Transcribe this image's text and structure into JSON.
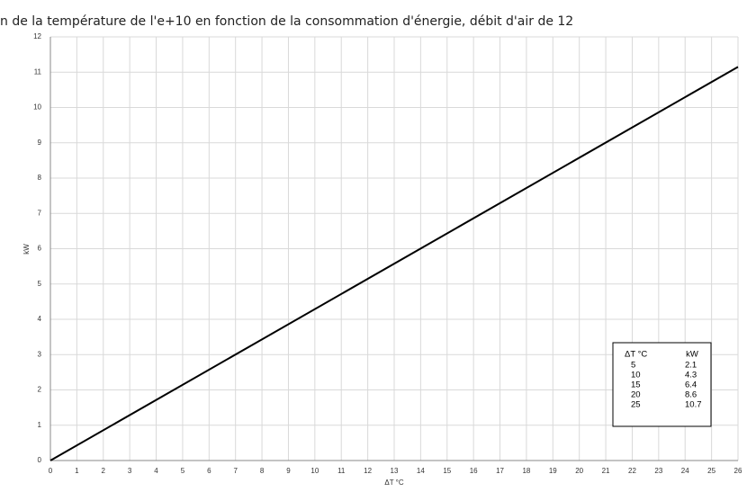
{
  "chart_data": {
    "type": "line",
    "title": "n de la température de l'e+10 en fonction de la consommation d'énergie, débit d'air de 12",
    "x_label": "ΔT °C",
    "y_label": "kW",
    "x": [
      0,
      26
    ],
    "series": [
      {
        "color": "#000000",
        "values": [
          0,
          11.15
        ]
      }
    ],
    "xlim": [
      0,
      26
    ],
    "xticks": [
      0,
      1,
      2,
      3,
      4,
      5,
      6,
      7,
      8,
      9,
      10,
      11,
      12,
      13,
      14,
      15,
      16,
      17,
      18,
      19,
      20,
      21,
      22,
      23,
      24,
      25,
      26
    ],
    "ylim": [
      0,
      12
    ],
    "yticks": [
      0,
      1,
      2,
      3,
      4,
      5,
      6,
      7,
      8,
      9,
      10,
      11,
      12
    ],
    "grid": true,
    "table": {
      "header": [
        "ΔT °C",
        "kW"
      ],
      "rows": [
        [
          "5",
          "2.1"
        ],
        [
          "10",
          "4.3"
        ],
        [
          "15",
          "6.4"
        ],
        [
          "20",
          "8.6"
        ],
        [
          "25",
          "10.7"
        ]
      ]
    }
  }
}
